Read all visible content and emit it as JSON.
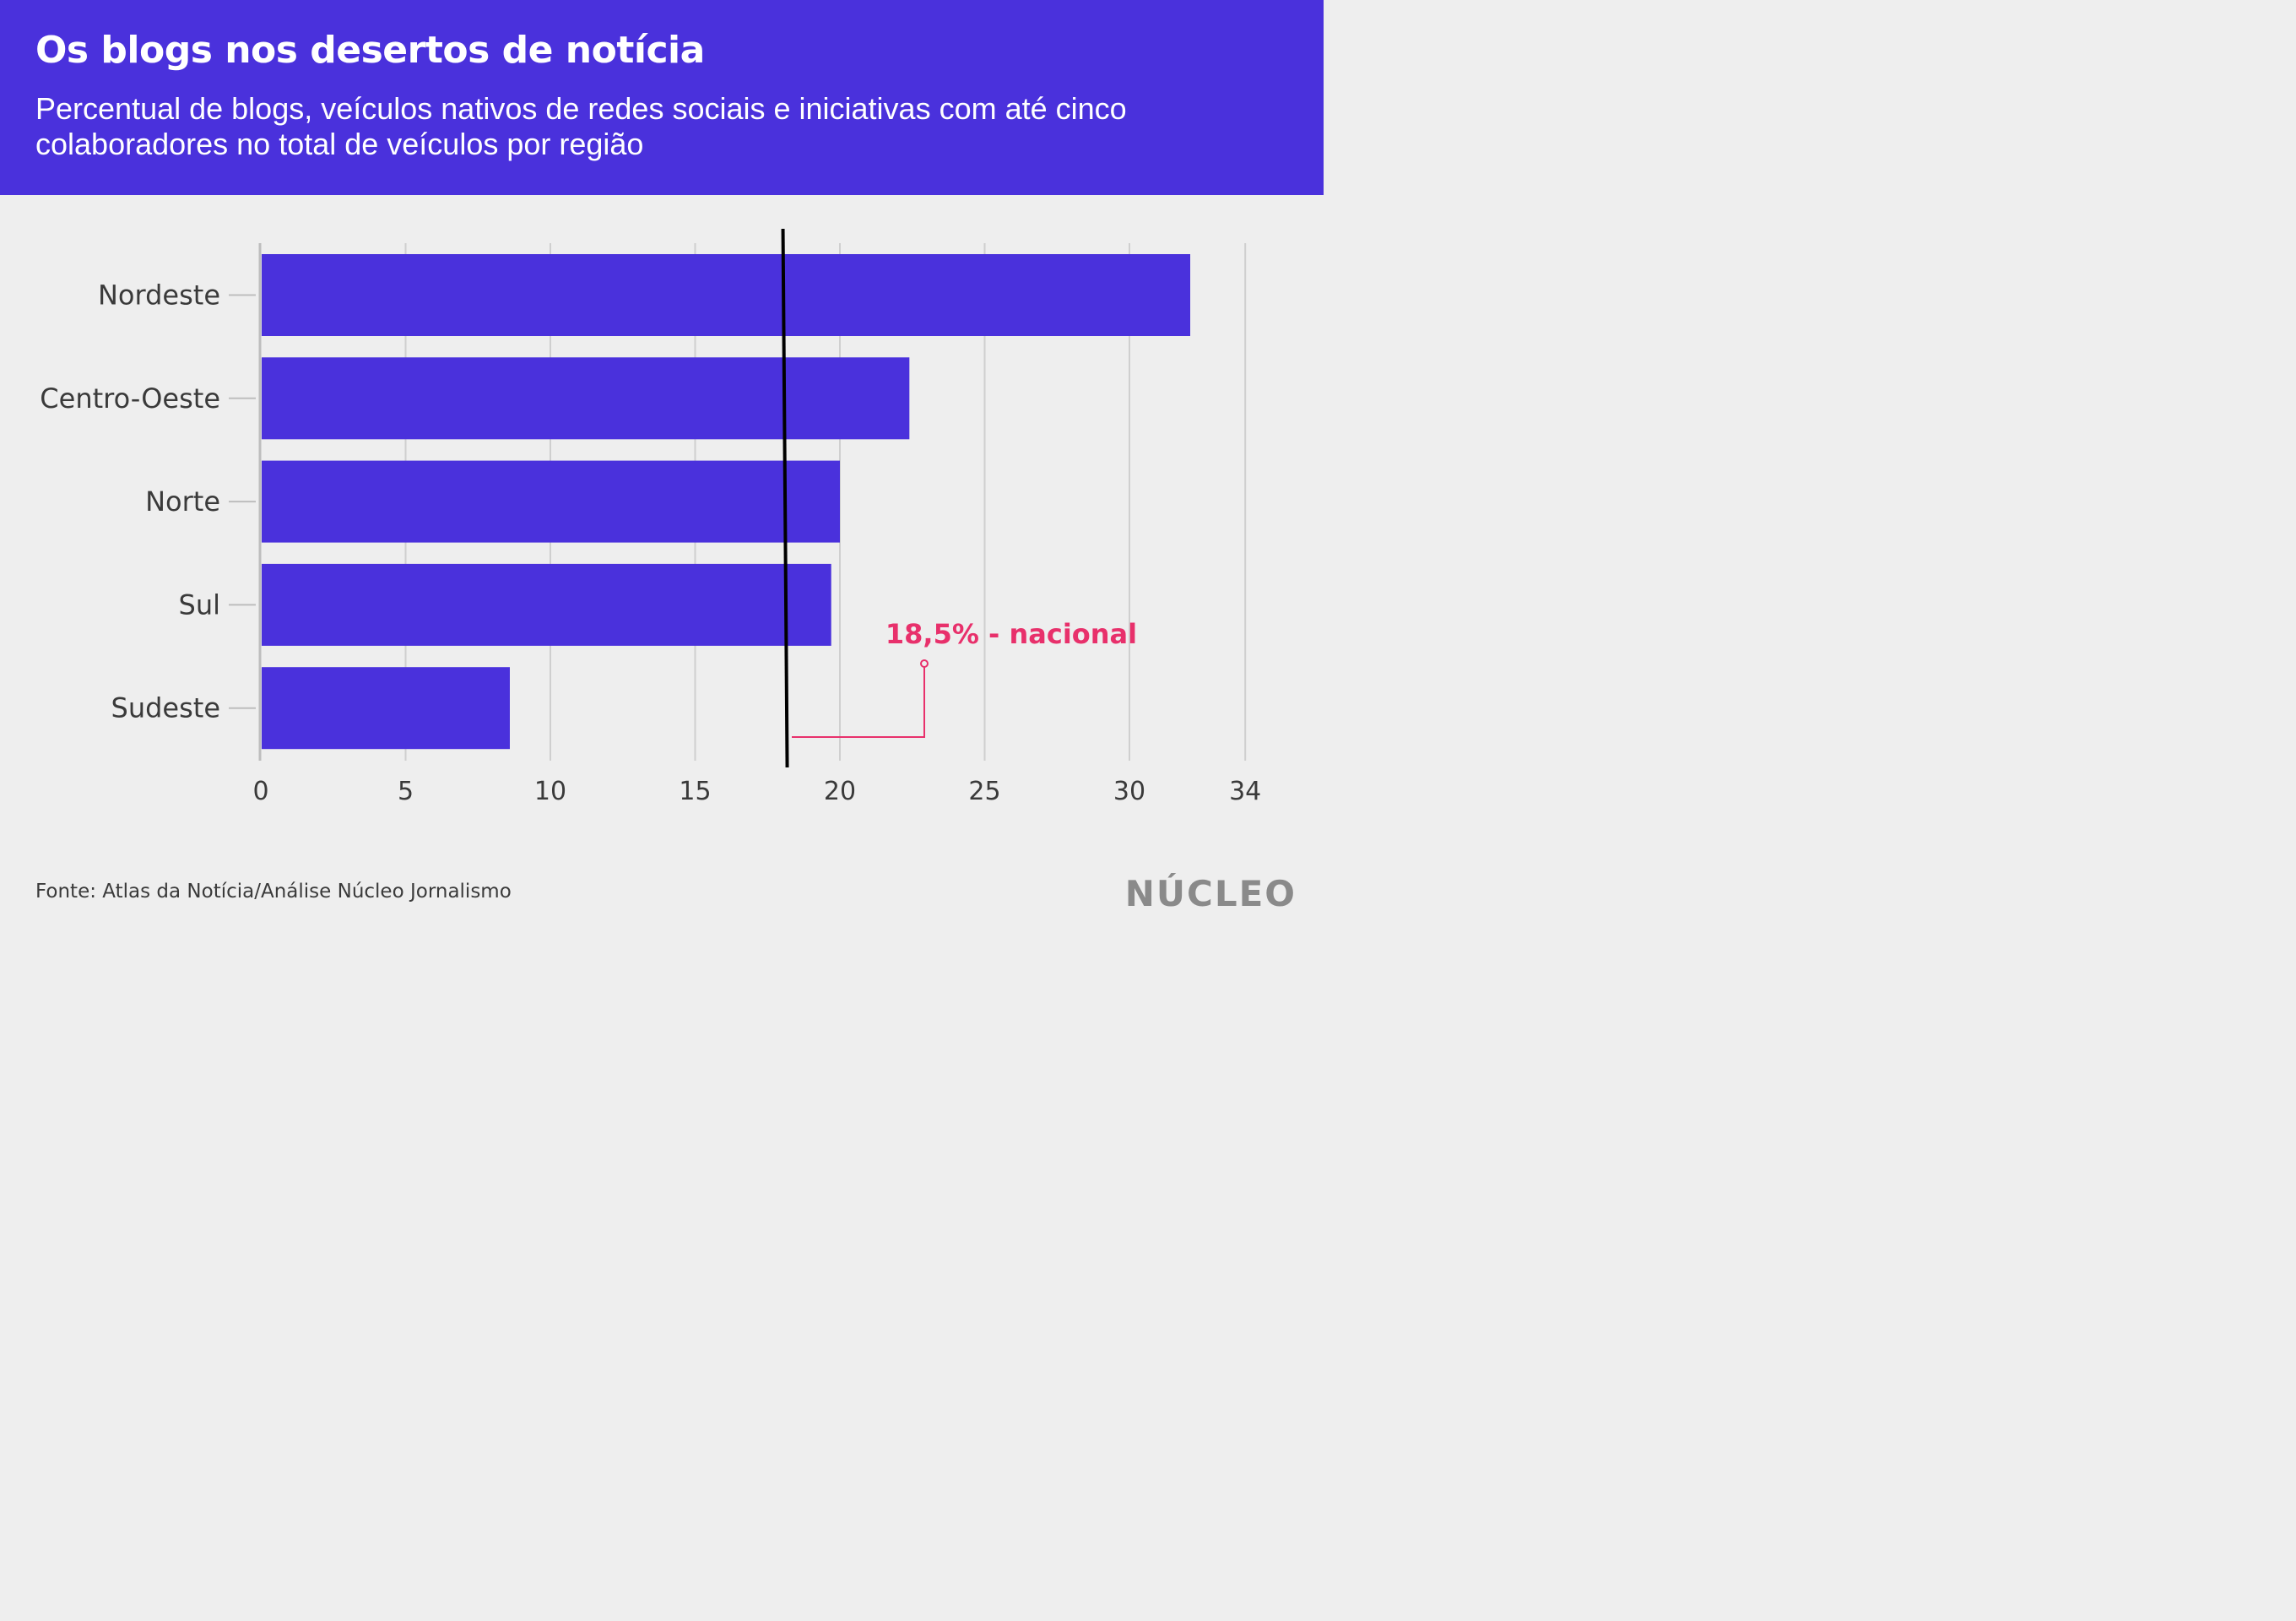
{
  "header": {
    "title": "Os blogs nos desertos de notícia",
    "subtitle": "Percentual de blogs, veículos nativos de redes sociais e iniciativas com até cinco colaboradores no total de veículos por região"
  },
  "colors": {
    "header_bg": "#4a31dc",
    "bar": "#4a31dc",
    "reference_line": "#000000",
    "annotation": "#e8306b",
    "background": "#eeeeee"
  },
  "chart_data": {
    "type": "bar",
    "orientation": "horizontal",
    "title": "Os blogs nos desertos de notícia",
    "subtitle": "Percentual de blogs, veículos nativos de redes sociais e iniciativas com até cinco colaboradores no total de veículos por região",
    "categories": [
      "Nordeste",
      "Centro-Oeste",
      "Norte",
      "Sul",
      "Sudeste"
    ],
    "values": [
      32.1,
      22.4,
      20.0,
      19.7,
      8.6
    ],
    "xlim": [
      0,
      34
    ],
    "xticks": [
      0,
      5,
      10,
      15,
      20,
      25,
      30,
      34
    ],
    "grid": true,
    "reference_line": {
      "value": 18.5,
      "label": "18,5% - nacional"
    }
  },
  "footer": {
    "source": "Fonte: Atlas da Notícia/Análise Núcleo Jornalismo",
    "logo_text": "NÚCLEO"
  }
}
